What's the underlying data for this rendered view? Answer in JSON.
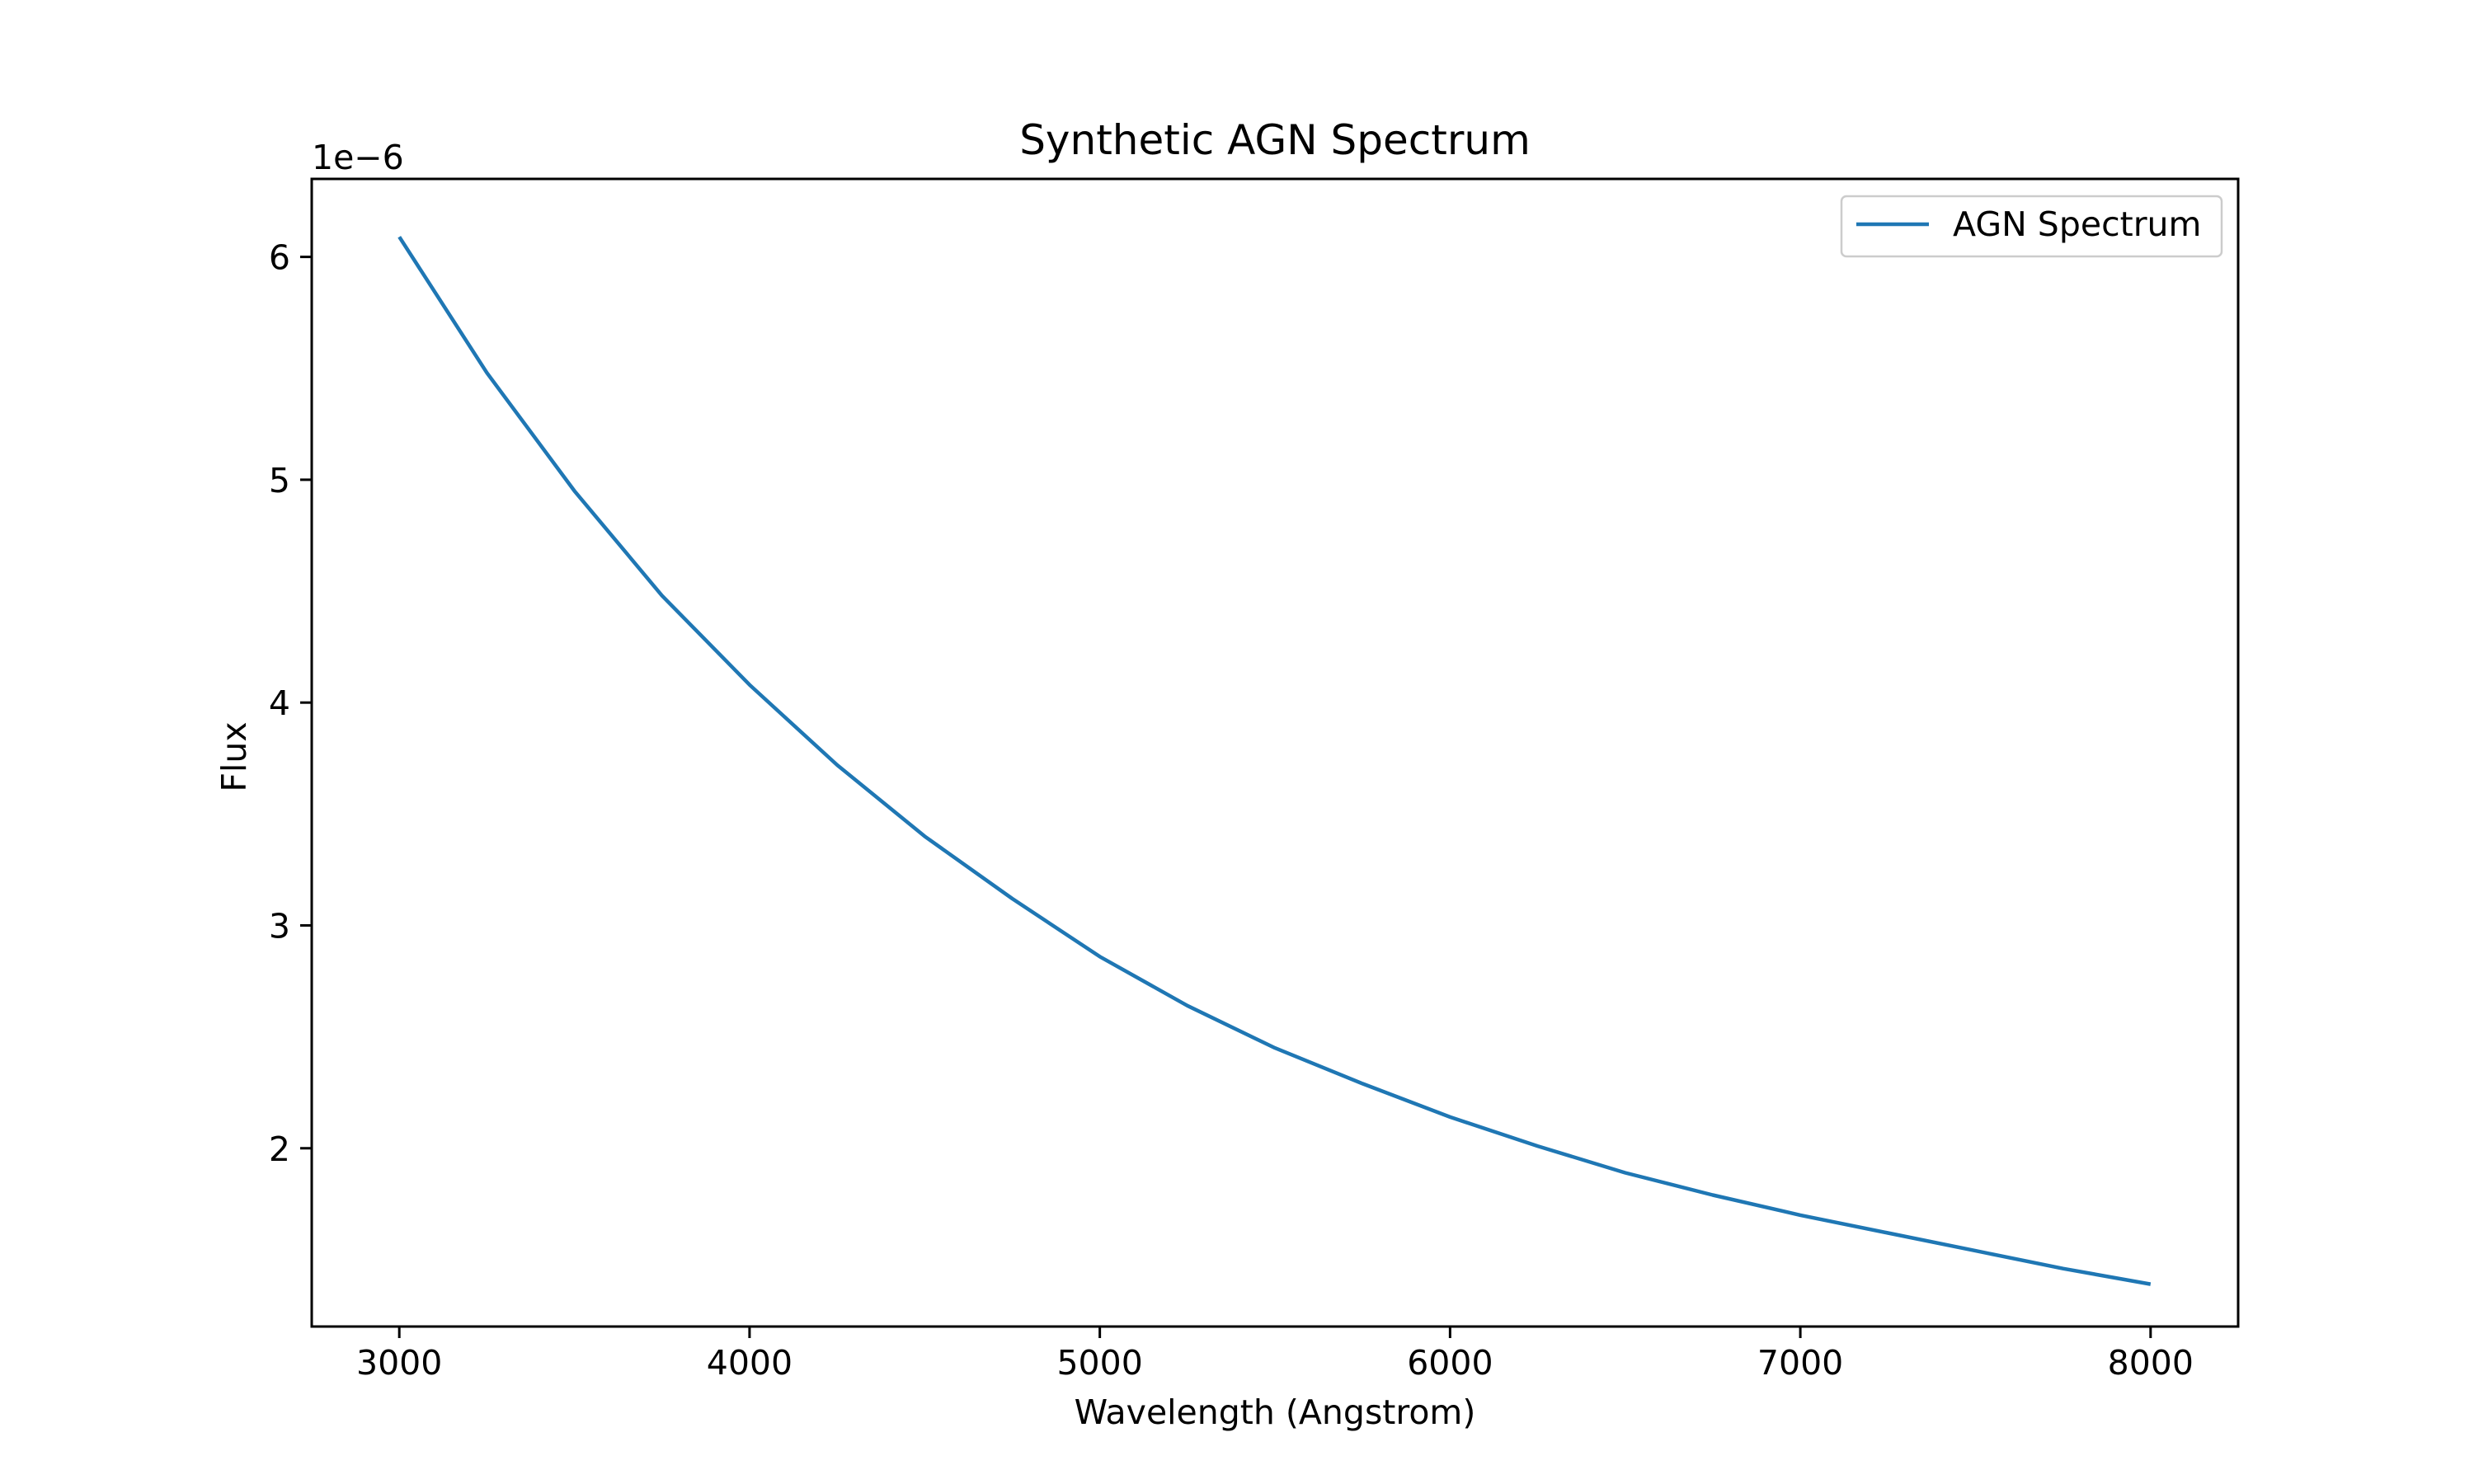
{
  "chart_data": {
    "type": "line",
    "title": "Synthetic AGN Spectrum",
    "xlabel": "Wavelength (Angstrom)",
    "ylabel": "Flux",
    "y_offset_label": "1e−6",
    "y_scale_factor": 1e-06,
    "xlim": [
      2750,
      8250
    ],
    "ylim": [
      1.2e-06,
      6.35e-06
    ],
    "x_ticks": [
      3000,
      4000,
      5000,
      6000,
      7000,
      8000
    ],
    "x_tick_labels": [
      "3000",
      "4000",
      "5000",
      "6000",
      "7000",
      "8000"
    ],
    "y_ticks": [
      2e-06,
      3e-06,
      4e-06,
      5e-06,
      6e-06
    ],
    "y_tick_labels": [
      "2",
      "3",
      "4",
      "5",
      "6"
    ],
    "grid": false,
    "legend_position": "top-right",
    "series": [
      {
        "name": "AGN Spectrum",
        "color": "#1f77b4",
        "x": [
          3000,
          3250,
          3500,
          3750,
          4000,
          4250,
          4500,
          4750,
          5000,
          5250,
          5500,
          5750,
          6000,
          6250,
          6500,
          6750,
          7000,
          7250,
          7500,
          7750,
          8000
        ],
        "y": [
          6.09e-06,
          5.48e-06,
          4.95e-06,
          4.48e-06,
          4.08e-06,
          3.72e-06,
          3.4e-06,
          3.12e-06,
          2.86e-06,
          2.64e-06,
          2.45e-06,
          2.29e-06,
          2.14e-06,
          2.01e-06,
          1.89e-06,
          1.79e-06,
          1.7e-06,
          1.62e-06,
          1.54e-06,
          1.46e-06,
          1.39e-06
        ]
      }
    ]
  }
}
